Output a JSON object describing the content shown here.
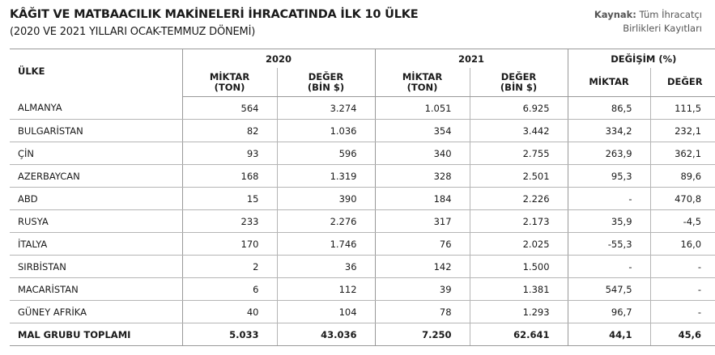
{
  "title": "KÂĞIT VE MATBAACILIK MAKİNELERİ İHRACATINDA İLK 10 ÜLKE",
  "subtitle": "(2020 VE 2021 YILLARI OCAK-TEMMUZ DÖNEMİ)",
  "source": {
    "label": "Kaynak:",
    "text_line1": "Tüm İhracatçı",
    "text_line2": "Birlikleri Kayıtları"
  },
  "table": {
    "country_header": "ÜLKE",
    "groups": [
      "2020",
      "2021",
      "DEĞİŞİM (%)"
    ],
    "sub": {
      "miktar_1": "MİKTAR",
      "miktar_2": "(TON)",
      "deger_1": "DEĞER",
      "deger_2": "(BİN $)",
      "change_miktar": "MİKTAR",
      "change_deger": "DEĞER"
    },
    "rows": [
      [
        "ALMANYA",
        "564",
        "3.274",
        "1.051",
        "6.925",
        "86,5",
        "111,5"
      ],
      [
        "BULGARİSTAN",
        "82",
        "1.036",
        "354",
        "3.442",
        "334,2",
        "232,1"
      ],
      [
        "ÇİN",
        "93",
        "596",
        "340",
        "2.755",
        "263,9",
        "362,1"
      ],
      [
        "AZERBAYCAN",
        "168",
        "1.319",
        "328",
        "2.501",
        "95,3",
        "89,6"
      ],
      [
        "ABD",
        "15",
        "390",
        "184",
        "2.226",
        "-",
        "470,8"
      ],
      [
        "RUSYA",
        "233",
        "2.276",
        "317",
        "2.173",
        "35,9",
        "-4,5"
      ],
      [
        "İTALYA",
        "170",
        "1.746",
        "76",
        "2.025",
        "-55,3",
        "16,0"
      ],
      [
        "SIRBİSTAN",
        "2",
        "36",
        "142",
        "1.500",
        "-",
        "-"
      ],
      [
        "MACARİSTAN",
        "6",
        "112",
        "39",
        "1.381",
        "547,5",
        "-"
      ],
      [
        "GÜNEY AFRİKA",
        "40",
        "104",
        "78",
        "1.293",
        "96,7",
        "-"
      ]
    ],
    "total": [
      "MAL GRUBU TOPLAMI",
      "5.033",
      "43.036",
      "7.250",
      "62.641",
      "44,1",
      "45,6"
    ]
  }
}
